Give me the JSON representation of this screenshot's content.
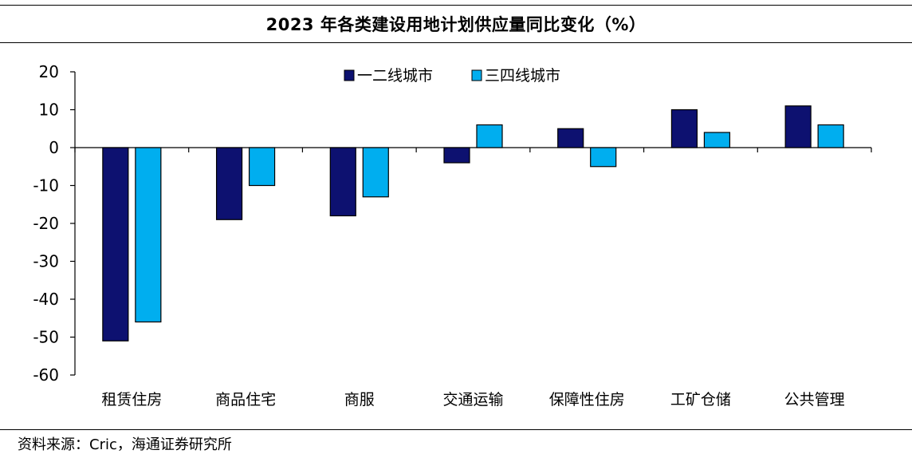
{
  "title": "2023 年各类建设用地计划供应量同比变化（%）",
  "source": "资料来源：Cric，海通证券研究所",
  "chart_data": {
    "type": "bar",
    "categories": [
      "租赁住房",
      "商品住宅",
      "商服",
      "交通运输",
      "保障性住房",
      "工矿仓储",
      "公共管理"
    ],
    "series": [
      {
        "name": "一二线城市",
        "color": "#0d1170",
        "values": [
          -51,
          -19,
          -18,
          -4,
          5,
          10,
          11
        ]
      },
      {
        "name": "三四线城市",
        "color": "#00aeef",
        "values": [
          -46,
          -10,
          -13,
          6,
          -5,
          4,
          6
        ]
      }
    ],
    "ylim": [
      -60,
      20
    ],
    "yticks": [
      20,
      10,
      0,
      -10,
      -20,
      -30,
      -40,
      -50,
      -60
    ],
    "xlabel": "",
    "ylabel": "",
    "legend_position": "top-center",
    "grid": false
  }
}
